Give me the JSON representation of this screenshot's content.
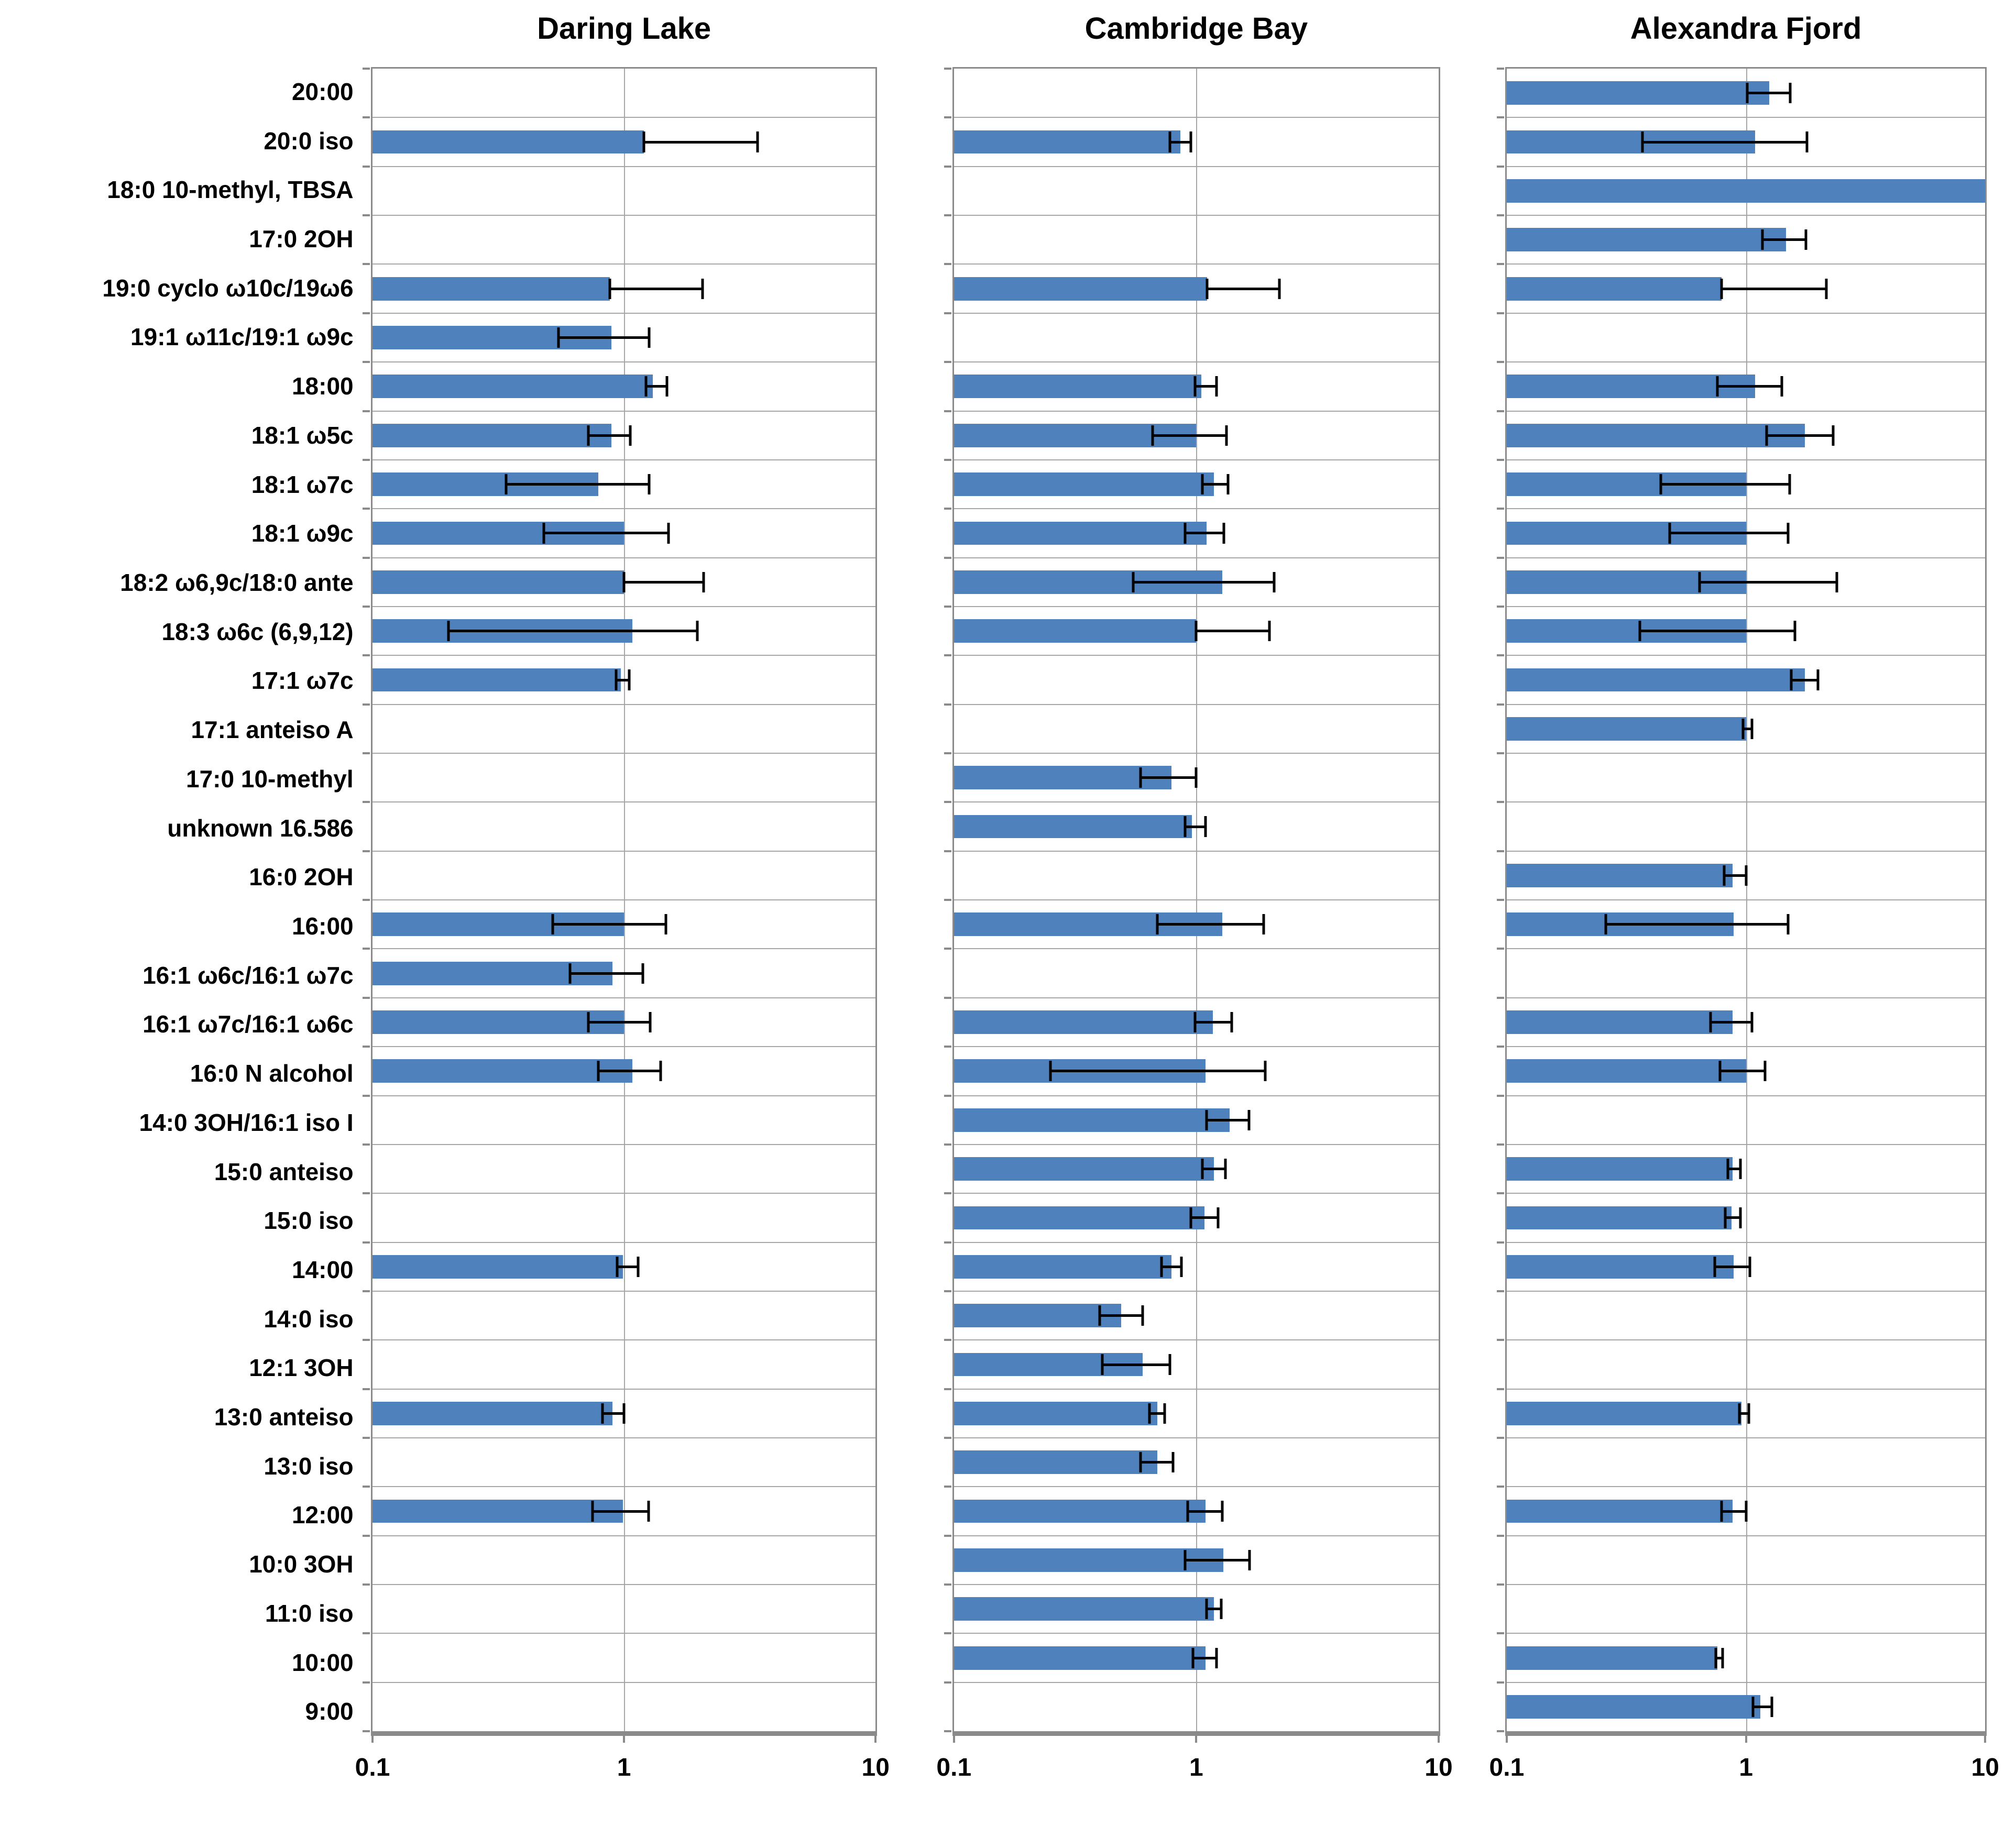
{
  "chart_data": {
    "type": "bar",
    "orientation": "horizontal",
    "x_scale": "log",
    "xlim": [
      0.1,
      10
    ],
    "x_ticks": [
      "0.1",
      "1",
      "10"
    ],
    "grid": true,
    "legend": "none",
    "bar_color": "#4F81BD",
    "error_bar_color": "#000000",
    "frame_color": "#8a8a8a",
    "categories": [
      "20:00",
      "20:0 iso",
      "18:0 10-methyl, TBSA",
      "17:0 2OH",
      "19:0 cyclo ω10c/19ω6",
      "19:1 ω11c/19:1 ω9c",
      "18:00",
      "18:1 ω5c",
      "18:1 ω7c",
      "18:1 ω9c",
      "18:2 ω6,9c/18:0 ante",
      "18:3 ω6c (6,9,12)",
      "17:1 ω7c",
      "17:1 anteiso A",
      "17:0 10-methyl",
      "unknown 16.586",
      "16:0 2OH",
      "16:00",
      "16:1 ω6c/16:1 ω7c",
      "16:1 ω7c/16:1 ω6c",
      "16:0 N alcohol",
      "14:0 3OH/16:1 iso I",
      "15:0 anteiso",
      "15:0 iso",
      "14:00",
      "14:0 iso",
      "12:1 3OH",
      "13:0 anteiso",
      "13:0 iso",
      "12:00",
      "10:0 3OH",
      "11:0 iso",
      "10:00",
      "9:00"
    ],
    "panels": [
      {
        "title": "Daring Lake",
        "values": [
          null,
          {
            "v": 1.2,
            "lo": 1.2,
            "hi": 3.4
          },
          null,
          null,
          {
            "v": 0.88,
            "lo": 0.88,
            "hi": 2.05
          },
          {
            "v": 0.89,
            "lo": 0.55,
            "hi": 1.26
          },
          {
            "v": 1.3,
            "lo": 1.22,
            "hi": 1.48
          },
          {
            "v": 0.89,
            "lo": 0.72,
            "hi": 1.06
          },
          {
            "v": 0.79,
            "lo": 0.34,
            "hi": 1.26
          },
          {
            "v": 1.0,
            "lo": 0.48,
            "hi": 1.5
          },
          {
            "v": 1.0,
            "lo": 1.0,
            "hi": 2.07
          },
          {
            "v": 1.08,
            "lo": 0.2,
            "hi": 1.96
          },
          {
            "v": 0.97,
            "lo": 0.93,
            "hi": 1.05
          },
          null,
          null,
          null,
          null,
          {
            "v": 1.0,
            "lo": 0.52,
            "hi": 1.47
          },
          {
            "v": 0.9,
            "lo": 0.61,
            "hi": 1.19
          },
          {
            "v": 1.0,
            "lo": 0.72,
            "hi": 1.27
          },
          {
            "v": 1.08,
            "lo": 0.79,
            "hi": 1.4
          },
          null,
          null,
          null,
          {
            "v": 0.99,
            "lo": 0.94,
            "hi": 1.14
          },
          null,
          null,
          {
            "v": 0.9,
            "lo": 0.82,
            "hi": 1.0
          },
          null,
          {
            "v": 0.99,
            "lo": 0.75,
            "hi": 1.25
          },
          null,
          null,
          null,
          null
        ]
      },
      {
        "title": "Cambridge Bay",
        "values": [
          null,
          {
            "v": 0.86,
            "lo": 0.78,
            "hi": 0.95
          },
          null,
          null,
          {
            "v": 1.11,
            "lo": 1.11,
            "hi": 2.2
          },
          null,
          {
            "v": 1.05,
            "lo": 0.99,
            "hi": 1.21
          },
          {
            "v": 1.0,
            "lo": 0.66,
            "hi": 1.33
          },
          {
            "v": 1.18,
            "lo": 1.06,
            "hi": 1.35
          },
          {
            "v": 1.1,
            "lo": 0.9,
            "hi": 1.3
          },
          {
            "v": 1.28,
            "lo": 0.55,
            "hi": 2.1
          },
          {
            "v": 1.0,
            "lo": 1.0,
            "hi": 2.0
          },
          null,
          null,
          {
            "v": 0.79,
            "lo": 0.59,
            "hi": 1.0
          },
          {
            "v": 0.96,
            "lo": 0.9,
            "hi": 1.09
          },
          null,
          {
            "v": 1.28,
            "lo": 0.69,
            "hi": 1.9
          },
          null,
          {
            "v": 1.17,
            "lo": 0.99,
            "hi": 1.4
          },
          {
            "v": 1.09,
            "lo": 0.25,
            "hi": 1.93
          },
          {
            "v": 1.37,
            "lo": 1.1,
            "hi": 1.65
          },
          {
            "v": 1.18,
            "lo": 1.06,
            "hi": 1.32
          },
          {
            "v": 1.08,
            "lo": 0.95,
            "hi": 1.23
          },
          {
            "v": 0.79,
            "lo": 0.72,
            "hi": 0.87
          },
          {
            "v": 0.49,
            "lo": 0.4,
            "hi": 0.6
          },
          {
            "v": 0.6,
            "lo": 0.41,
            "hi": 0.78
          },
          {
            "v": 0.69,
            "lo": 0.64,
            "hi": 0.74
          },
          {
            "v": 0.69,
            "lo": 0.59,
            "hi": 0.8
          },
          {
            "v": 1.09,
            "lo": 0.92,
            "hi": 1.28
          },
          {
            "v": 1.29,
            "lo": 0.9,
            "hi": 1.66
          },
          {
            "v": 1.18,
            "lo": 1.1,
            "hi": 1.27
          },
          {
            "v": 1.09,
            "lo": 0.97,
            "hi": 1.21
          },
          null
        ]
      },
      {
        "title": "Alexandra Fjord",
        "values": [
          {
            "v": 1.25,
            "lo": 1.01,
            "hi": 1.53
          },
          {
            "v": 1.09,
            "lo": 0.37,
            "hi": 1.8
          },
          {
            "v": 10,
            "lo": null,
            "hi": null
          },
          {
            "v": 1.47,
            "lo": 1.17,
            "hi": 1.78
          },
          {
            "v": 0.79,
            "lo": 0.79,
            "hi": 2.17
          },
          null,
          {
            "v": 1.09,
            "lo": 0.76,
            "hi": 1.41
          },
          {
            "v": 1.76,
            "lo": 1.22,
            "hi": 2.32
          },
          {
            "v": 1.0,
            "lo": 0.44,
            "hi": 1.52
          },
          {
            "v": 1.0,
            "lo": 0.48,
            "hi": 1.5
          },
          {
            "v": 1.0,
            "lo": 0.64,
            "hi": 2.4
          },
          {
            "v": 1.0,
            "lo": 0.36,
            "hi": 1.6
          },
          {
            "v": 1.76,
            "lo": 1.55,
            "hi": 2.0
          },
          {
            "v": 1.0,
            "lo": 0.97,
            "hi": 1.06
          },
          null,
          null,
          {
            "v": 0.88,
            "lo": 0.81,
            "hi": 1.0
          },
          {
            "v": 0.89,
            "lo": 0.26,
            "hi": 1.5
          },
          null,
          {
            "v": 0.88,
            "lo": 0.71,
            "hi": 1.06
          },
          {
            "v": 1.0,
            "lo": 0.78,
            "hi": 1.2
          },
          null,
          {
            "v": 0.88,
            "lo": 0.84,
            "hi": 0.95
          },
          {
            "v": 0.87,
            "lo": 0.82,
            "hi": 0.95
          },
          {
            "v": 0.89,
            "lo": 0.74,
            "hi": 1.04
          },
          null,
          null,
          {
            "v": 0.96,
            "lo": 0.94,
            "hi": 1.03
          },
          null,
          {
            "v": 0.88,
            "lo": 0.79,
            "hi": 1.0
          },
          null,
          null,
          {
            "v": 0.76,
            "lo": 0.75,
            "hi": 0.8
          },
          {
            "v": 1.15,
            "lo": 1.07,
            "hi": 1.28
          }
        ]
      }
    ]
  }
}
